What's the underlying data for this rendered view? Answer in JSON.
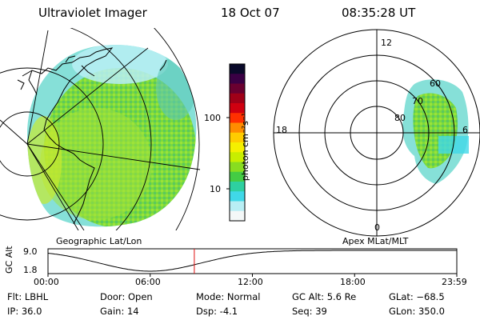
{
  "header": {
    "instrument": "Ultraviolet Imager",
    "date": "18 Oct 07",
    "time": "08:35:28 UT"
  },
  "geo_panel": {
    "label": "Geographic Lat/Lon"
  },
  "mag_panel": {
    "label": "Apex MLat/MLT",
    "mlt_labels": [
      "12",
      "18",
      "0",
      "6"
    ],
    "lat_labels": [
      "60",
      "70",
      "80"
    ]
  },
  "colorbar": {
    "unit_label": "photon cm⁻²s⁻¹",
    "tick_labels": [
      "100",
      "10"
    ],
    "colors": [
      "#0a0a2a",
      "#3a0044",
      "#6a0030",
      "#a00018",
      "#d00010",
      "#ff3000",
      "#ff8c00",
      "#ffcc00",
      "#f5f000",
      "#c8ee00",
      "#88dd20",
      "#44cc44",
      "#2ed0a0",
      "#40d8e8",
      "#b8eef4",
      "#f4f8f8"
    ]
  },
  "timeline": {
    "ylabel": "GC Alt",
    "y_ticks": [
      "9.0",
      "1.8"
    ],
    "x_ticks": [
      "00:00",
      "06:00",
      "12:00",
      "18:00",
      "23:59"
    ],
    "current_hour": 8.59,
    "marker_color": "#e01010"
  },
  "info": {
    "filter": "Flt: LBHL",
    "ip": "IP: 36.0",
    "door": "Door: Open",
    "gain": "Gain: 14",
    "mode": "Mode: Normal",
    "dsp": "Dsp:    -4.1",
    "gc_alt": "GC Alt: 5.6 Re",
    "seq": "Seq: 39",
    "glat": "GLat: −68.5",
    "glon": "GLon: 350.0"
  }
}
